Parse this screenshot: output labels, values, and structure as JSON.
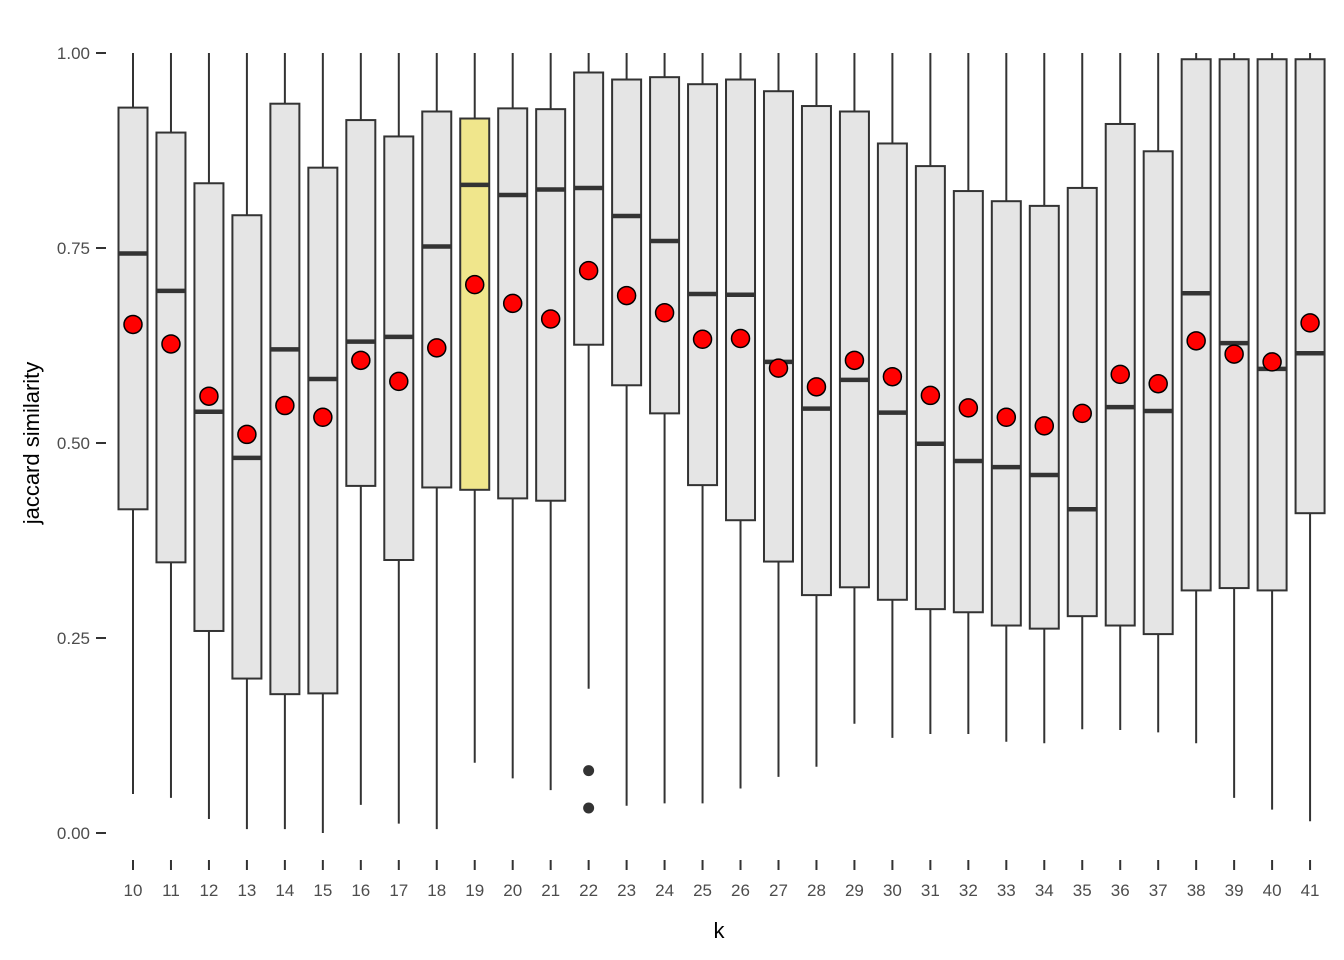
{
  "chart_data": {
    "type": "boxplot",
    "xlabel": "k",
    "ylabel": "jaccard similarity",
    "ylim": [
      0,
      1
    ],
    "y_ticks": [
      "0.00",
      "0.25",
      "0.50",
      "0.75",
      "1.00"
    ],
    "y_tick_values": [
      0,
      0.25,
      0.5,
      0.75,
      1.0
    ],
    "grid": false,
    "box_fill": "#e5e5e5",
    "highlight_fill": "#f0e68c",
    "highlight_category": "19",
    "mean_color": "#ff0000",
    "line_color": "#333333",
    "categories": [
      "10",
      "11",
      "12",
      "13",
      "14",
      "15",
      "16",
      "17",
      "18",
      "19",
      "20",
      "21",
      "22",
      "23",
      "24",
      "25",
      "26",
      "27",
      "28",
      "29",
      "30",
      "31",
      "32",
      "33",
      "34",
      "35",
      "36",
      "37",
      "38",
      "39",
      "40",
      "41"
    ],
    "boxes": [
      {
        "k": "10",
        "whisker_low": 0.05,
        "q1": 0.415,
        "median": 0.743,
        "q3": 0.93,
        "whisker_high": 1.0,
        "mean": 0.652,
        "outliers": []
      },
      {
        "k": "11",
        "whisker_low": 0.045,
        "q1": 0.347,
        "median": 0.695,
        "q3": 0.898,
        "whisker_high": 1.0,
        "mean": 0.627,
        "outliers": []
      },
      {
        "k": "12",
        "whisker_low": 0.018,
        "q1": 0.259,
        "median": 0.54,
        "q3": 0.833,
        "whisker_high": 1.0,
        "mean": 0.56,
        "outliers": []
      },
      {
        "k": "13",
        "whisker_low": 0.005,
        "q1": 0.198,
        "median": 0.481,
        "q3": 0.792,
        "whisker_high": 1.0,
        "mean": 0.511,
        "outliers": []
      },
      {
        "k": "14",
        "whisker_low": 0.005,
        "q1": 0.178,
        "median": 0.62,
        "q3": 0.935,
        "whisker_high": 1.0,
        "mean": 0.548,
        "outliers": []
      },
      {
        "k": "15",
        "whisker_low": 0.0,
        "q1": 0.179,
        "median": 0.582,
        "q3": 0.853,
        "whisker_high": 1.0,
        "mean": 0.533,
        "outliers": []
      },
      {
        "k": "16",
        "whisker_low": 0.036,
        "q1": 0.445,
        "median": 0.63,
        "q3": 0.914,
        "whisker_high": 1.0,
        "mean": 0.606,
        "outliers": []
      },
      {
        "k": "17",
        "whisker_low": 0.012,
        "q1": 0.35,
        "median": 0.636,
        "q3": 0.893,
        "whisker_high": 1.0,
        "mean": 0.579,
        "outliers": []
      },
      {
        "k": "18",
        "whisker_low": 0.005,
        "q1": 0.443,
        "median": 0.752,
        "q3": 0.925,
        "whisker_high": 1.0,
        "mean": 0.622,
        "outliers": []
      },
      {
        "k": "19",
        "whisker_low": 0.09,
        "q1": 0.44,
        "median": 0.831,
        "q3": 0.916,
        "whisker_high": 1.0,
        "mean": 0.703,
        "outliers": []
      },
      {
        "k": "20",
        "whisker_low": 0.07,
        "q1": 0.429,
        "median": 0.818,
        "q3": 0.929,
        "whisker_high": 1.0,
        "mean": 0.679,
        "outliers": []
      },
      {
        "k": "21",
        "whisker_low": 0.055,
        "q1": 0.426,
        "median": 0.825,
        "q3": 0.928,
        "whisker_high": 1.0,
        "mean": 0.659,
        "outliers": []
      },
      {
        "k": "22",
        "whisker_low": 0.185,
        "q1": 0.626,
        "median": 0.827,
        "q3": 0.975,
        "whisker_high": 1.0,
        "mean": 0.721,
        "outliers": [
          0.08,
          0.032
        ]
      },
      {
        "k": "23",
        "whisker_low": 0.035,
        "q1": 0.574,
        "median": 0.791,
        "q3": 0.966,
        "whisker_high": 1.0,
        "mean": 0.689,
        "outliers": []
      },
      {
        "k": "24",
        "whisker_low": 0.038,
        "q1": 0.538,
        "median": 0.759,
        "q3": 0.969,
        "whisker_high": 1.0,
        "mean": 0.667,
        "outliers": []
      },
      {
        "k": "25",
        "whisker_low": 0.038,
        "q1": 0.446,
        "median": 0.691,
        "q3": 0.96,
        "whisker_high": 1.0,
        "mean": 0.633,
        "outliers": []
      },
      {
        "k": "26",
        "whisker_low": 0.057,
        "q1": 0.401,
        "median": 0.69,
        "q3": 0.966,
        "whisker_high": 1.0,
        "mean": 0.634,
        "outliers": []
      },
      {
        "k": "27",
        "whisker_low": 0.072,
        "q1": 0.348,
        "median": 0.604,
        "q3": 0.951,
        "whisker_high": 1.0,
        "mean": 0.596,
        "outliers": []
      },
      {
        "k": "28",
        "whisker_low": 0.085,
        "q1": 0.305,
        "median": 0.544,
        "q3": 0.932,
        "whisker_high": 1.0,
        "mean": 0.572,
        "outliers": []
      },
      {
        "k": "29",
        "whisker_low": 0.14,
        "q1": 0.315,
        "median": 0.581,
        "q3": 0.925,
        "whisker_high": 1.0,
        "mean": 0.606,
        "outliers": []
      },
      {
        "k": "30",
        "whisker_low": 0.122,
        "q1": 0.299,
        "median": 0.539,
        "q3": 0.884,
        "whisker_high": 1.0,
        "mean": 0.585,
        "outliers": []
      },
      {
        "k": "31",
        "whisker_low": 0.127,
        "q1": 0.287,
        "median": 0.499,
        "q3": 0.855,
        "whisker_high": 1.0,
        "mean": 0.561,
        "outliers": []
      },
      {
        "k": "32",
        "whisker_low": 0.127,
        "q1": 0.283,
        "median": 0.477,
        "q3": 0.823,
        "whisker_high": 1.0,
        "mean": 0.545,
        "outliers": []
      },
      {
        "k": "33",
        "whisker_low": 0.117,
        "q1": 0.266,
        "median": 0.469,
        "q3": 0.81,
        "whisker_high": 1.0,
        "mean": 0.533,
        "outliers": []
      },
      {
        "k": "34",
        "whisker_low": 0.115,
        "q1": 0.262,
        "median": 0.459,
        "q3": 0.804,
        "whisker_high": 1.0,
        "mean": 0.522,
        "outliers": []
      },
      {
        "k": "35",
        "whisker_low": 0.133,
        "q1": 0.278,
        "median": 0.415,
        "q3": 0.827,
        "whisker_high": 1.0,
        "mean": 0.538,
        "outliers": []
      },
      {
        "k": "36",
        "whisker_low": 0.132,
        "q1": 0.266,
        "median": 0.546,
        "q3": 0.909,
        "whisker_high": 1.0,
        "mean": 0.588,
        "outliers": []
      },
      {
        "k": "37",
        "whisker_low": 0.129,
        "q1": 0.255,
        "median": 0.541,
        "q3": 0.874,
        "whisker_high": 1.0,
        "mean": 0.576,
        "outliers": []
      },
      {
        "k": "38",
        "whisker_low": 0.115,
        "q1": 0.311,
        "median": 0.692,
        "q3": 0.992,
        "whisker_high": 1.0,
        "mean": 0.631,
        "outliers": []
      },
      {
        "k": "39",
        "whisker_low": 0.045,
        "q1": 0.314,
        "median": 0.628,
        "q3": 0.992,
        "whisker_high": 1.0,
        "mean": 0.614,
        "outliers": []
      },
      {
        "k": "40",
        "whisker_low": 0.03,
        "q1": 0.311,
        "median": 0.595,
        "q3": 0.992,
        "whisker_high": 1.0,
        "mean": 0.604,
        "outliers": []
      },
      {
        "k": "41",
        "whisker_low": 0.015,
        "q1": 0.41,
        "median": 0.615,
        "q3": 0.992,
        "whisker_high": 1.0,
        "mean": 0.654,
        "outliers": []
      }
    ]
  }
}
